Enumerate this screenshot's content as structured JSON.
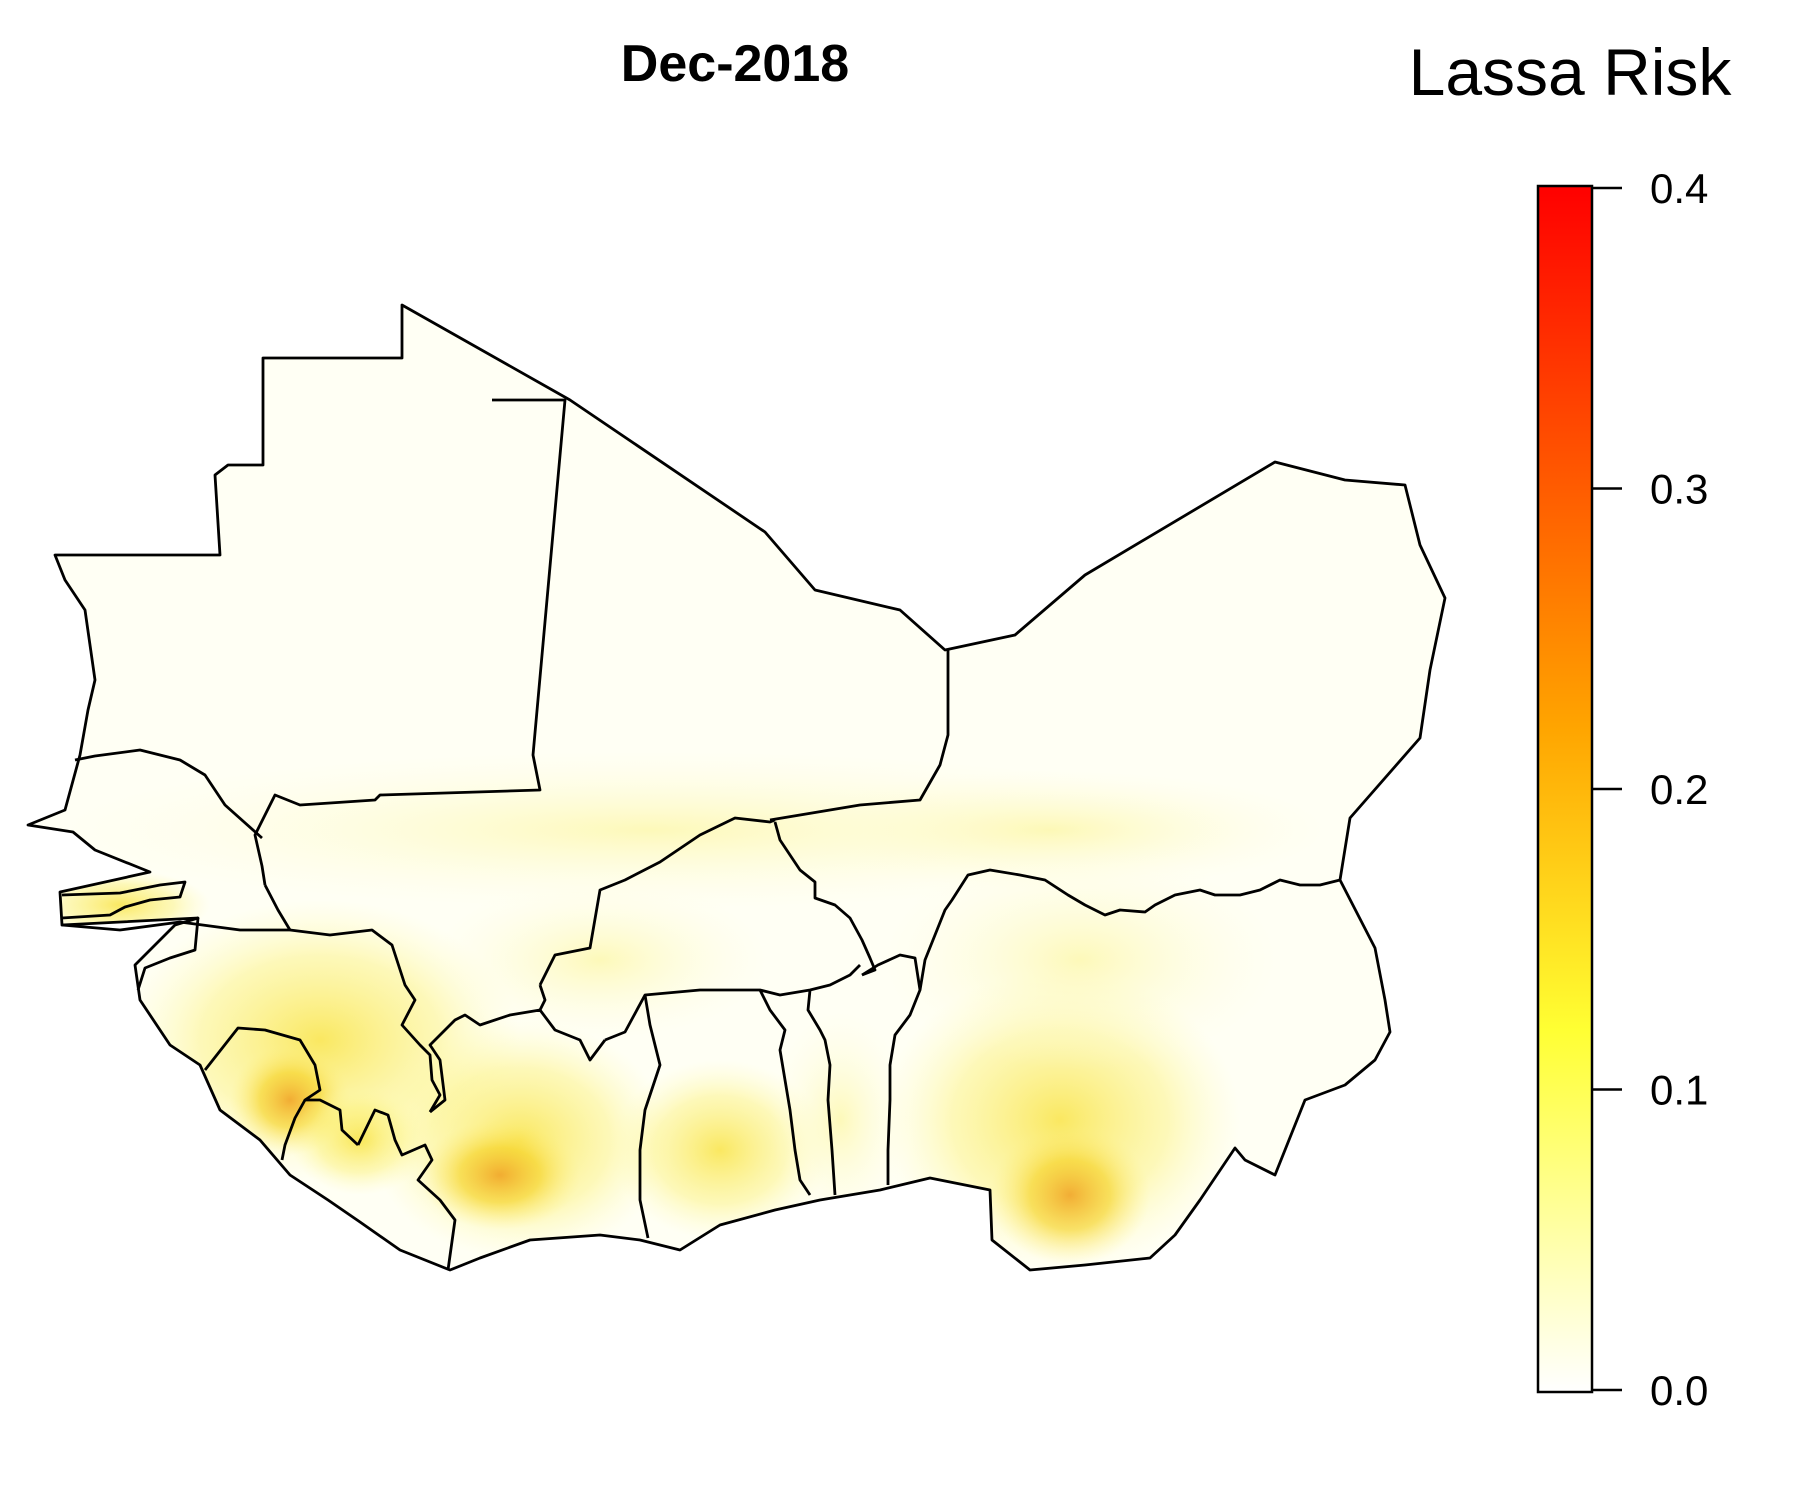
{
  "title": "Dec-2018",
  "legend": {
    "title": "Lassa Risk",
    "min": 0.0,
    "max": 0.4,
    "ticks": [
      {
        "value": 0.4,
        "label": "0.4"
      },
      {
        "value": 0.3,
        "label": "0.3"
      },
      {
        "value": 0.2,
        "label": "0.2"
      },
      {
        "value": 0.1,
        "label": "0.1"
      },
      {
        "value": 0.0,
        "label": "0.0"
      }
    ],
    "color_stops": [
      "#FFFFFF",
      "#FFFF33",
      "#FF8C00",
      "#FF0000"
    ]
  },
  "colors": {
    "background": "#FFFFFF",
    "land": "#FFFFF4",
    "border": "#000000"
  }
}
